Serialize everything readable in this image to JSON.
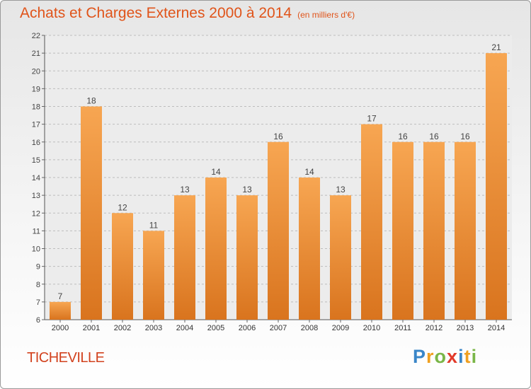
{
  "title": "Achats et Charges Externes 2000 à 2014",
  "subtitle": "(en milliers d'€)",
  "commune": "TICHEVILLE",
  "logo": {
    "letters": [
      "P",
      "r",
      "o",
      "x",
      "i",
      "t",
      "i"
    ],
    "colors": [
      "#3a86c8",
      "#f0a020",
      "#7ab648",
      "#e23a2a",
      "#3a86c8",
      "#f0a020",
      "#7ab648"
    ]
  },
  "colors": {
    "title": "#e0541a",
    "bar_top": "#f7a652",
    "bar_bottom": "#d9741e",
    "commune": "#d2421e"
  },
  "chart_data": {
    "type": "bar",
    "categories": [
      "2000",
      "2001",
      "2002",
      "2003",
      "2004",
      "2005",
      "2006",
      "2007",
      "2008",
      "2009",
      "2010",
      "2011",
      "2012",
      "2013",
      "2014"
    ],
    "values": [
      7,
      18,
      12,
      11,
      13,
      14,
      13,
      16,
      14,
      13,
      17,
      16,
      16,
      16,
      21
    ],
    "value_labels": [
      "7",
      "18",
      "12",
      "11",
      "13",
      "14",
      "13",
      "16",
      "14",
      "13",
      "17",
      "16",
      "16",
      "16",
      "21"
    ],
    "ylim": [
      6,
      22
    ],
    "yticks": [
      "6",
      "7",
      "8",
      "9",
      "10",
      "11",
      "12",
      "13",
      "14",
      "15",
      "16",
      "17",
      "18",
      "19",
      "20",
      "21",
      "22"
    ],
    "grid": "horizontal dashed",
    "xlabel": "",
    "ylabel": ""
  }
}
